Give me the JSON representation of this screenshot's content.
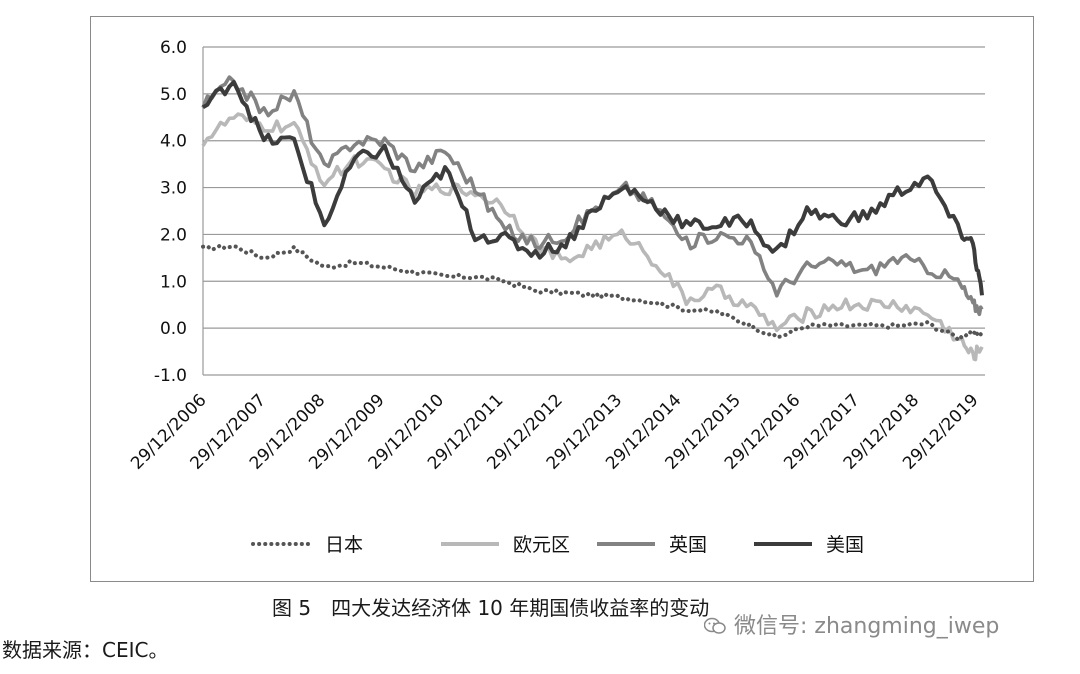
{
  "chart_data": {
    "type": "line",
    "title": "",
    "xlabel": "",
    "ylabel": "",
    "ylim": [
      -1.0,
      6.0
    ],
    "yticks": [
      "6.0",
      "5.0",
      "4.0",
      "3.0",
      "2.0",
      "1.0",
      "0.0",
      "-1.0"
    ],
    "xticks": [
      "29/12/2006",
      "29/12/2007",
      "29/12/2008",
      "29/12/2009",
      "29/12/2010",
      "29/12/2011",
      "29/12/2012",
      "29/12/2013",
      "29/12/2014",
      "29/12/2015",
      "29/12/2016",
      "29/12/2017",
      "29/12/2018",
      "29/12/2019"
    ],
    "grid": "horizontal",
    "legend_position": "bottom",
    "x": [
      2006.99,
      2007.5,
      2008.0,
      2008.5,
      2009.0,
      2009.5,
      2010.0,
      2010.5,
      2011.0,
      2011.5,
      2012.0,
      2012.5,
      2013.0,
      2013.5,
      2014.0,
      2014.5,
      2015.0,
      2015.5,
      2016.0,
      2016.5,
      2017.0,
      2017.5,
      2018.0,
      2018.5,
      2019.0,
      2019.5,
      2019.75,
      2019.9
    ],
    "series": [
      {
        "name": "日本",
        "color": "#555555",
        "style": "dotted",
        "values": [
          1.7,
          1.75,
          1.5,
          1.7,
          1.3,
          1.4,
          1.3,
          1.2,
          1.1,
          1.1,
          1.0,
          0.8,
          0.75,
          0.7,
          0.65,
          0.55,
          0.4,
          0.35,
          0.1,
          -0.2,
          0.05,
          0.05,
          0.05,
          0.05,
          0.1,
          -0.2,
          -0.1,
          -0.1
        ]
      },
      {
        "name": "欧元区",
        "color": "#b8b8b8",
        "style": "solid",
        "values": [
          4.0,
          4.5,
          4.3,
          4.3,
          3.1,
          3.6,
          3.4,
          2.9,
          3.0,
          2.9,
          2.6,
          1.8,
          1.4,
          1.8,
          2.0,
          1.4,
          0.6,
          0.8,
          0.5,
          0.0,
          0.3,
          0.5,
          0.5,
          0.5,
          0.3,
          -0.2,
          -0.6,
          -0.4
        ]
      },
      {
        "name": "英国",
        "color": "#828282",
        "style": "solid",
        "values": [
          4.75,
          5.3,
          4.6,
          5.0,
          3.4,
          4.0,
          4.0,
          3.4,
          3.8,
          3.0,
          2.1,
          1.8,
          2.0,
          2.6,
          3.0,
          2.6,
          1.8,
          2.0,
          1.9,
          0.8,
          1.3,
          1.4,
          1.2,
          1.5,
          1.3,
          1.0,
          0.5,
          0.4
        ]
      },
      {
        "name": "美国",
        "color": "#3c3c3c",
        "style": "solid",
        "values": [
          4.7,
          5.3,
          4.0,
          4.0,
          2.2,
          3.6,
          3.8,
          2.7,
          3.4,
          2.0,
          1.9,
          1.6,
          1.8,
          2.6,
          3.0,
          2.6,
          2.2,
          2.2,
          2.3,
          1.6,
          2.5,
          2.3,
          2.4,
          2.9,
          3.2,
          2.1,
          1.8,
          0.7
        ]
      }
    ]
  },
  "caption": "图 5　四大发达经济体 10 年期国债收益率的变动",
  "source": "数据来源：CEIC。",
  "watermark": "微信号: zhangming_iwep"
}
